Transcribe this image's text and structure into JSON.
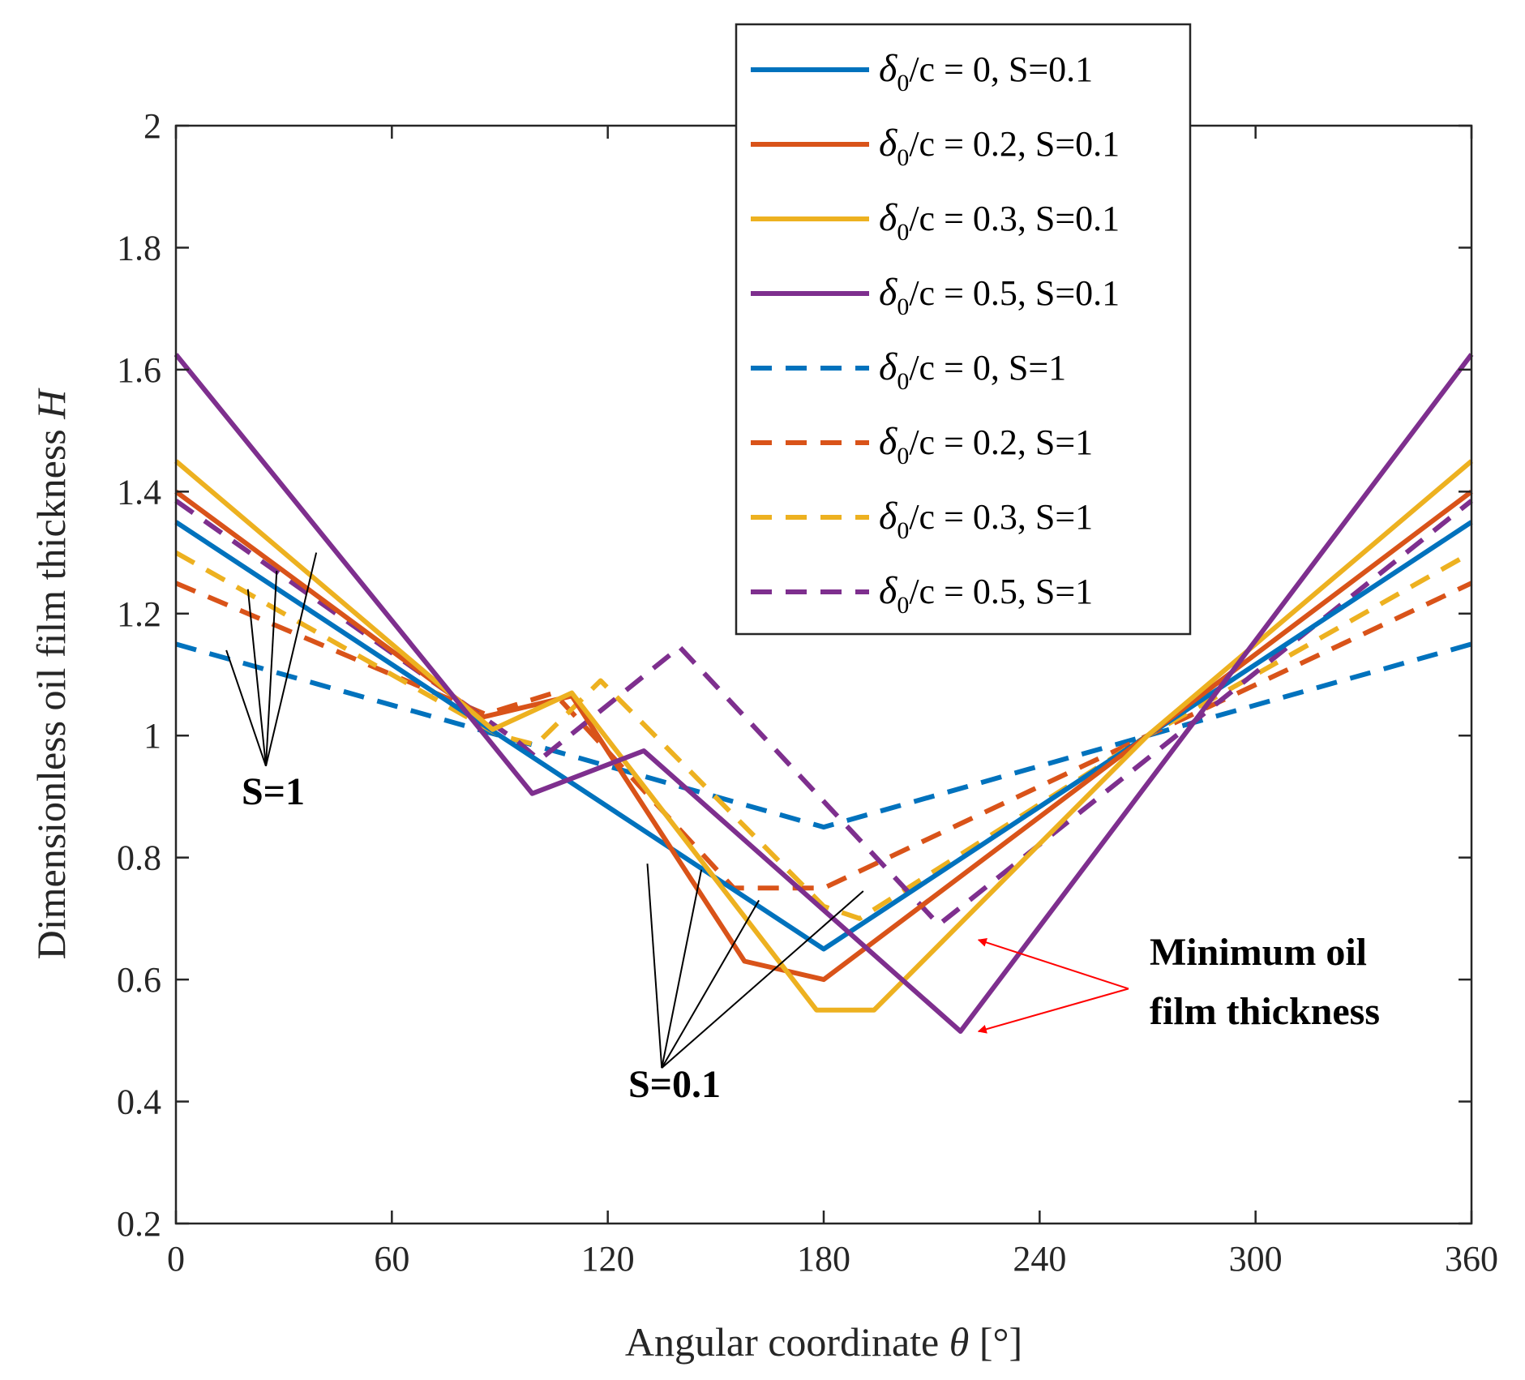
{
  "chart_data": {
    "type": "line",
    "xlabel": "Angular coordinate",
    "xlabel_symbol": "θ",
    "xlabel_unit": "[°]",
    "ylabel": "Dimensionless oil film thickness",
    "ylabel_symbol": "H",
    "xlim": [
      0,
      360
    ],
    "ylim": [
      0.2,
      2
    ],
    "xticks": [
      "0",
      "60",
      "120",
      "180",
      "240",
      "300",
      "360"
    ],
    "yticks": [
      "0.2",
      "0.4",
      "0.6",
      "0.8",
      "1",
      "1.2",
      "1.4",
      "1.6",
      "1.8",
      "2"
    ],
    "grid": false,
    "legend_position": "top-right",
    "legend": [
      {
        "sym": "δ",
        "sub": "0",
        "text": "/c = 0, S=0.1"
      },
      {
        "sym": "δ",
        "sub": "0",
        "text": "/c = 0.2, S=0.1"
      },
      {
        "sym": "δ",
        "sub": "0",
        "text": "/c = 0.3, S=0.1"
      },
      {
        "sym": "δ",
        "sub": "0",
        "text": "/c = 0.5, S=0.1"
      },
      {
        "sym": "δ",
        "sub": "0",
        "text": "/c = 0, S=1"
      },
      {
        "sym": "δ",
        "sub": "0",
        "text": "/c = 0.2, S=1"
      },
      {
        "sym": "δ",
        "sub": "0",
        "text": "/c = 0.3, S=1"
      },
      {
        "sym": "δ",
        "sub": "0",
        "text": "/c = 0.5, S=1"
      }
    ],
    "series": [
      {
        "delta": 0.0,
        "S": 0.1,
        "color": "#0072BD",
        "dashed": false,
        "points": [
          [
            0,
            1.35
          ],
          [
            90,
            1.0
          ],
          [
            180,
            0.65
          ],
          [
            270,
            1.0
          ],
          [
            360,
            1.35
          ]
        ]
      },
      {
        "delta": 0.2,
        "S": 0.1,
        "color": "#D95319",
        "dashed": false,
        "points": [
          [
            0,
            1.4
          ],
          [
            85,
            1.03
          ],
          [
            110,
            1.065
          ],
          [
            158,
            0.63
          ],
          [
            180,
            0.6
          ],
          [
            270,
            1.0
          ],
          [
            360,
            1.4
          ]
        ]
      },
      {
        "delta": 0.3,
        "S": 0.1,
        "color": "#EDB120",
        "dashed": false,
        "points": [
          [
            0,
            1.45
          ],
          [
            88,
            1.01
          ],
          [
            110,
            1.07
          ],
          [
            178,
            0.55
          ],
          [
            194,
            0.55
          ],
          [
            270,
            1.0
          ],
          [
            360,
            1.45
          ]
        ]
      },
      {
        "delta": 0.5,
        "S": 0.1,
        "color": "#7E2F8E",
        "dashed": false,
        "points": [
          [
            0,
            1.625
          ],
          [
            99,
            0.905
          ],
          [
            130,
            0.975
          ],
          [
            218,
            0.515
          ],
          [
            360,
            1.625
          ]
        ]
      },
      {
        "delta": 0.0,
        "S": 1,
        "color": "#0072BD",
        "dashed": true,
        "points": [
          [
            0,
            1.15
          ],
          [
            90,
            1.0
          ],
          [
            180,
            0.85
          ],
          [
            270,
            1.0
          ],
          [
            360,
            1.15
          ]
        ]
      },
      {
        "delta": 0.2,
        "S": 1,
        "color": "#D95319",
        "dashed": true,
        "points": [
          [
            0,
            1.25
          ],
          [
            86,
            1.035
          ],
          [
            105,
            1.07
          ],
          [
            155,
            0.75
          ],
          [
            180,
            0.75
          ],
          [
            270,
            1.0
          ],
          [
            360,
            1.25
          ]
        ]
      },
      {
        "delta": 0.3,
        "S": 1,
        "color": "#EDB120",
        "dashed": true,
        "points": [
          [
            0,
            1.3
          ],
          [
            90,
            1.0
          ],
          [
            100,
            0.985
          ],
          [
            118,
            1.09
          ],
          [
            180,
            0.72
          ],
          [
            190,
            0.7
          ],
          [
            270,
            1.0
          ],
          [
            360,
            1.3
          ]
        ]
      },
      {
        "delta": 0.5,
        "S": 1,
        "color": "#7E2F8E",
        "dashed": true,
        "points": [
          [
            0,
            1.385
          ],
          [
            95,
            0.99
          ],
          [
            101,
            0.96
          ],
          [
            140,
            1.145
          ],
          [
            212,
            0.69
          ],
          [
            360,
            1.385
          ]
        ]
      }
    ],
    "annotations": [
      {
        "text": "S=1",
        "x": 25,
        "y": 0.93,
        "pointer_to": [
          [
            14,
            1.14
          ],
          [
            20,
            1.24
          ],
          [
            28,
            1.27
          ],
          [
            39,
            1.3
          ]
        ]
      },
      {
        "text": "S=0.1",
        "x": 135,
        "y": 0.43,
        "pointer_to": [
          [
            131,
            0.79
          ],
          [
            146,
            0.78
          ],
          [
            162,
            0.73
          ],
          [
            191,
            0.745
          ]
        ]
      },
      {
        "text": "Minimum oil",
        "x": 270,
        "y": 0.64,
        "pointer_to": []
      },
      {
        "text": "film thickness",
        "x": 270,
        "y": 0.54,
        "pointer_to": [
          [
            223,
            0.665
          ],
          [
            223,
            0.515
          ]
        ]
      }
    ]
  }
}
